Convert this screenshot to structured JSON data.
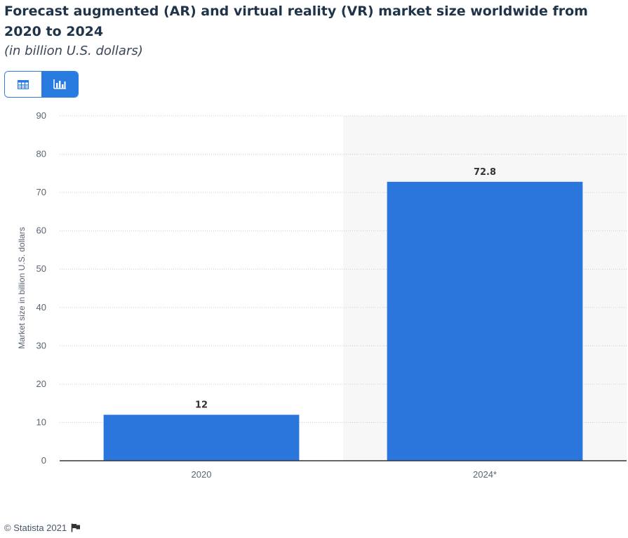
{
  "title": "Forecast augmented (AR) and virtual reality (VR) market size worldwide from 2020 to 2024",
  "subtitle": "(in billion U.S. dollars)",
  "view_toggle": {
    "table_icon": "table-icon",
    "chart_icon": "bar-chart-icon",
    "active": "chart"
  },
  "footer": {
    "copyright": "© Statista 2021",
    "flag_icon": "flag-icon"
  },
  "colors": {
    "bar": "#2a76dd",
    "accent": "#2a7be0",
    "highlight_band": "#f7f7f7"
  },
  "chart_data": {
    "type": "bar",
    "categories": [
      "2020",
      "2024*"
    ],
    "values": [
      12,
      72.8
    ],
    "data_labels": [
      "12",
      "72.8"
    ],
    "ylabel": "Market size in billion U.S. dollars",
    "xlabel": "",
    "ylim": [
      0,
      90
    ],
    "yticks": [
      0,
      10,
      20,
      30,
      40,
      50,
      60,
      70,
      80,
      90
    ],
    "grid": true,
    "highlighted_category": "2024*"
  }
}
